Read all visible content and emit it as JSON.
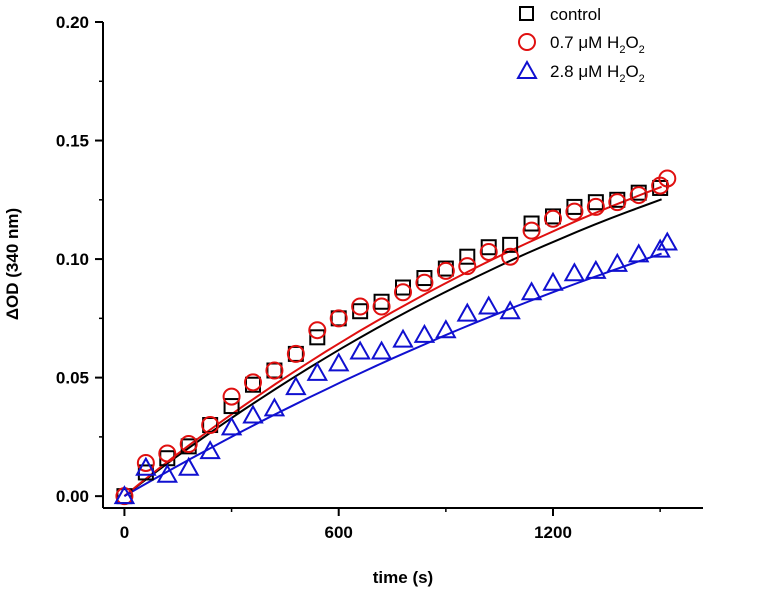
{
  "chart_data": {
    "type": "scatter",
    "title": "",
    "xlabel": "time (s)",
    "ylabel": "ΔOD (340 nm)",
    "xlim": [
      -60,
      1620
    ],
    "ylim": [
      -0.005,
      0.2
    ],
    "xticks": [
      0,
      600,
      1200
    ],
    "xtick_labels": [
      "0",
      "600",
      "1200"
    ],
    "yticks": [
      0.0,
      0.05,
      0.1,
      0.15,
      0.2
    ],
    "ytick_labels": [
      "0.00",
      "0.05",
      "0.10",
      "0.15",
      "0.20"
    ],
    "grid": false,
    "legend_position": "top-right",
    "series": [
      {
        "name": "control",
        "marker": "square",
        "color": "#000000",
        "fit_color": "#000000",
        "x": [
          0,
          60,
          120,
          180,
          240,
          300,
          360,
          420,
          480,
          540,
          600,
          660,
          720,
          780,
          840,
          900,
          960,
          1020,
          1080,
          1140,
          1200,
          1260,
          1320,
          1380,
          1440,
          1500
        ],
        "y": [
          0.0,
          0.01,
          0.016,
          0.021,
          0.03,
          0.038,
          0.047,
          0.053,
          0.06,
          0.067,
          0.075,
          0.078,
          0.082,
          0.088,
          0.092,
          0.096,
          0.101,
          0.105,
          0.106,
          0.115,
          0.118,
          0.122,
          0.124,
          0.125,
          0.128,
          0.13
        ],
        "fit": [
          0.0,
          0.0055,
          0.0108,
          0.0161,
          0.0212,
          0.0262,
          0.0311,
          0.0359,
          0.0406,
          0.0452,
          0.0497,
          0.0541,
          0.0584,
          0.0626,
          0.0667,
          0.0707,
          0.0746,
          0.0784,
          0.0821,
          0.0857,
          0.0892,
          0.0926,
          0.096,
          0.0993,
          0.1025,
          0.1056,
          0.1086,
          0.1116,
          0.1145,
          0.1173,
          0.12,
          0.1226,
          0.1252
        ]
      },
      {
        "name": "0.7 μM H2O2",
        "marker": "circle",
        "color": "#e01010",
        "fit_color": "#e01010",
        "x": [
          0,
          60,
          120,
          180,
          240,
          300,
          360,
          420,
          480,
          540,
          600,
          660,
          720,
          780,
          840,
          900,
          960,
          1020,
          1080,
          1140,
          1200,
          1260,
          1320,
          1380,
          1440,
          1500,
          1520
        ],
        "y": [
          0.0,
          0.014,
          0.018,
          0.022,
          0.03,
          0.042,
          0.048,
          0.053,
          0.06,
          0.07,
          0.075,
          0.08,
          0.08,
          0.086,
          0.09,
          0.095,
          0.097,
          0.103,
          0.101,
          0.112,
          0.117,
          0.12,
          0.122,
          0.124,
          0.127,
          0.131,
          0.134
        ],
        "fit": [
          0.0,
          0.0058,
          0.0114,
          0.0169,
          0.0223,
          0.0275,
          0.0326,
          0.0376,
          0.0425,
          0.0473,
          0.052,
          0.0565,
          0.061,
          0.0653,
          0.0696,
          0.0737,
          0.0778,
          0.0817,
          0.0856,
          0.0893,
          0.093,
          0.0966,
          0.1001,
          0.1035,
          0.1068,
          0.11,
          0.1132,
          0.1163,
          0.1193,
          0.1222,
          0.125,
          0.1278,
          0.1305
        ]
      },
      {
        "name": "2.8 μM H2O2",
        "marker": "triangle",
        "color": "#1010d0",
        "fit_color": "#1010d0",
        "x": [
          0,
          60,
          120,
          180,
          240,
          300,
          360,
          420,
          480,
          540,
          600,
          660,
          720,
          780,
          840,
          900,
          960,
          1020,
          1080,
          1140,
          1200,
          1260,
          1320,
          1380,
          1440,
          1500,
          1520
        ],
        "y": [
          0.0,
          0.012,
          0.009,
          0.012,
          0.019,
          0.029,
          0.034,
          0.037,
          0.046,
          0.052,
          0.056,
          0.061,
          0.061,
          0.066,
          0.068,
          0.07,
          0.077,
          0.08,
          0.078,
          0.086,
          0.09,
          0.094,
          0.095,
          0.098,
          0.102,
          0.104,
          0.107
        ],
        "fit": [
          0.0,
          0.0041,
          0.0081,
          0.0121,
          0.016,
          0.0198,
          0.0236,
          0.0273,
          0.031,
          0.0346,
          0.0381,
          0.0416,
          0.045,
          0.0484,
          0.0517,
          0.055,
          0.0582,
          0.0613,
          0.0644,
          0.0675,
          0.0705,
          0.0734,
          0.0763,
          0.0791,
          0.0819,
          0.0846,
          0.0873,
          0.0899,
          0.0925,
          0.095,
          0.0975,
          0.0999,
          0.1023
        ]
      }
    ],
    "fit_x": [
      0,
      47,
      94,
      141,
      188,
      235,
      282,
      329,
      376,
      423,
      470,
      517,
      564,
      611,
      658,
      705,
      752,
      799,
      846,
      893,
      940,
      987,
      1034,
      1081,
      1128,
      1175,
      1222,
      1269,
      1316,
      1363,
      1410,
      1457,
      1504
    ]
  },
  "legend": {
    "items": [
      {
        "prefix": "control",
        "sub1": "",
        "mid": "",
        "sub2": ""
      },
      {
        "prefix": "0.7 μM H",
        "sub1": "2",
        "mid": "O",
        "sub2": "2"
      },
      {
        "prefix": "2.8 μM H",
        "sub1": "2",
        "mid": "O",
        "sub2": "2"
      }
    ]
  }
}
